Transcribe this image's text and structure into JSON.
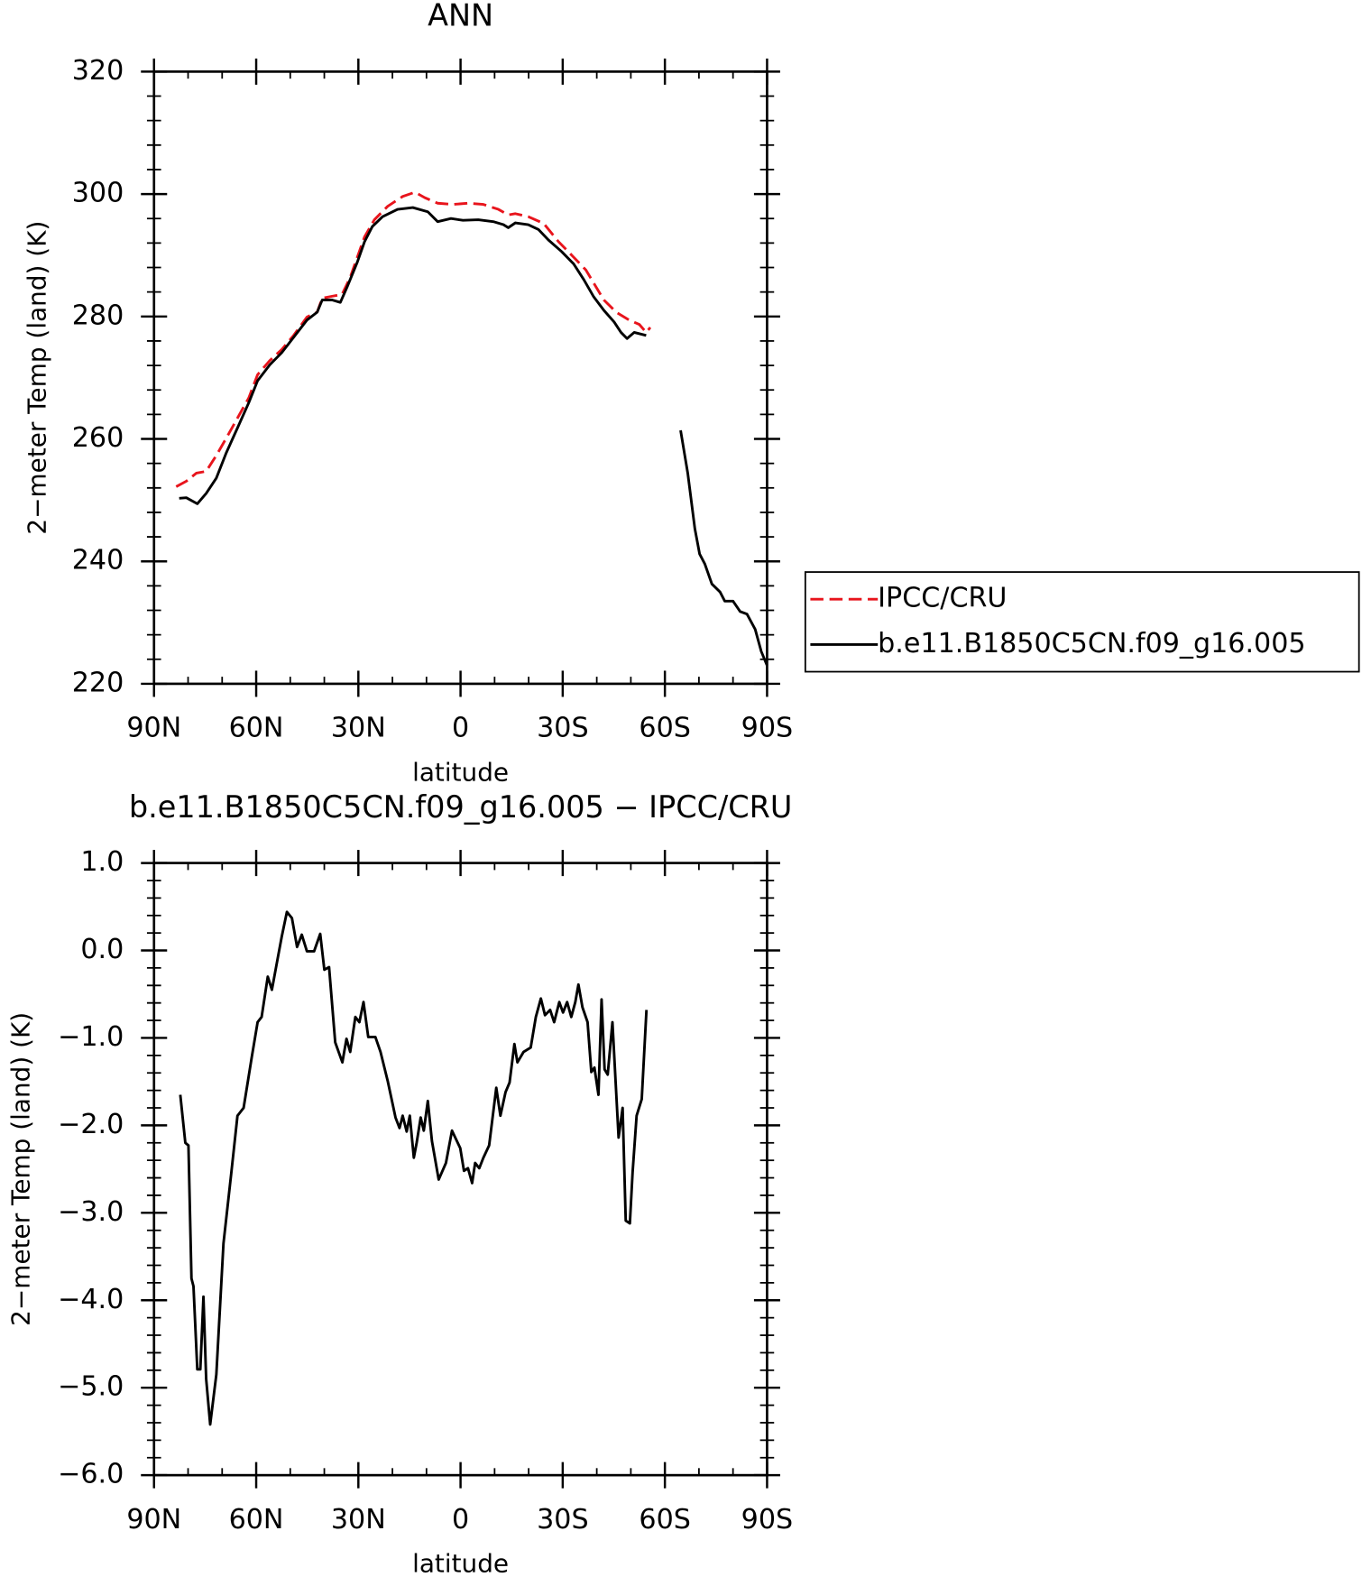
{
  "chart_data": [
    {
      "type": "line",
      "title": "ANN",
      "xlabel": "latitude",
      "ylabel": "2−meter Temp (land) (K)",
      "xlim": [
        90,
        -90
      ],
      "xticks": [
        {
          "value": 90,
          "label": "90N"
        },
        {
          "value": 60,
          "label": "60N"
        },
        {
          "value": 30,
          "label": "30N"
        },
        0,
        {
          "value": -30,
          "label": "30S"
        },
        {
          "value": -60,
          "label": "60S"
        },
        {
          "value": -90,
          "label": "90S"
        }
      ],
      "ylim": [
        220,
        320
      ],
      "yticks": [
        220,
        240,
        260,
        280,
        300,
        320
      ],
      "legend": "right",
      "series": [
        {
          "name": "IPCC/CRU",
          "color": "#e8141c",
          "dash": true,
          "x": [
            83.5,
            80.5,
            77.6,
            74.7,
            71.7,
            68.8,
            65.5,
            62.2,
            59.6,
            56.0,
            52.5,
            49.0,
            45.1,
            42.1,
            40.6,
            37.7,
            34.8,
            32.4,
            30.3,
            28.2,
            25.3,
            21.4,
            17.0,
            13.4,
            10.5,
            6.7,
            2.2,
            -2.2,
            -6.7,
            -11.1,
            -14.0,
            -16.1,
            -19.9,
            -24.4,
            -28.8,
            -33.2,
            -36.8,
            -39.8,
            -42.1,
            -45.7,
            -49.5,
            -52.5,
            -54.5,
            -55.7
          ],
          "values": [
            252.2,
            253.1,
            254.4,
            254.7,
            257.3,
            260.1,
            263.4,
            266.7,
            270.5,
            272.8,
            274.6,
            276.9,
            279.9,
            280.7,
            283.0,
            283.3,
            283.6,
            286.4,
            289.7,
            293.0,
            295.8,
            298.0,
            299.6,
            300.3,
            299.4,
            298.5,
            298.3,
            298.5,
            298.3,
            297.5,
            296.6,
            296.8,
            296.3,
            295.2,
            292.2,
            289.7,
            287.6,
            284.8,
            282.7,
            280.7,
            279.4,
            278.7,
            277.4,
            278.2
          ]
        },
        {
          "name": "b.e11.B1850C5CN.f09_g16.005",
          "color": "#000000",
          "dash": false,
          "x": [
            82.6,
            80.5,
            77.3,
            74.7,
            71.7,
            68.8,
            65.5,
            62.2,
            59.6,
            56.0,
            52.5,
            49.0,
            45.1,
            42.1,
            40.6,
            37.7,
            35.3,
            33.3,
            30.3,
            28.2,
            25.9,
            22.9,
            18.5,
            14.0,
            9.6,
            6.7,
            2.8,
            -0.7,
            -5.2,
            -9.6,
            -12.6,
            -14.0,
            -16.1,
            -19.9,
            -22.9,
            -25.8,
            -29.7,
            -33.2,
            -36.2,
            -39.1,
            -42.1,
            -45.1,
            -47.1,
            -48.9,
            -51.0,
            -54.5,
            null,
            -64.6,
            -66.7,
            -68.8,
            -70.2,
            -71.7,
            -73.8,
            -76.2,
            -77.6,
            -80.0,
            -82.1,
            -84.1,
            -86.5,
            -88.3,
            -90.0
          ],
          "values": [
            250.3,
            250.4,
            249.4,
            251.1,
            253.6,
            257.7,
            261.8,
            265.9,
            269.5,
            272.1,
            274.1,
            276.6,
            279.4,
            280.7,
            282.7,
            282.7,
            282.3,
            284.8,
            288.9,
            292.2,
            294.7,
            296.3,
            297.5,
            297.8,
            297.1,
            295.5,
            296.0,
            295.7,
            295.8,
            295.5,
            295.0,
            294.5,
            295.3,
            295.0,
            294.2,
            292.5,
            290.6,
            288.6,
            286.0,
            283.2,
            281.0,
            279.1,
            277.4,
            276.4,
            277.4,
            276.9,
            null,
            261.4,
            254.4,
            245.3,
            241.2,
            239.6,
            236.3,
            235.0,
            233.5,
            233.5,
            231.8,
            231.4,
            228.9,
            225.3,
            223.0
          ]
        }
      ]
    },
    {
      "type": "line",
      "title": "b.e11.B1850C5CN.f09_g16.005 − IPCC/CRU",
      "xlabel": "latitude",
      "ylabel": "2−meter Temp (land) (K)",
      "xlim": [
        90,
        -90
      ],
      "xticks": [
        {
          "value": 90,
          "label": "90N"
        },
        {
          "value": 60,
          "label": "60N"
        },
        {
          "value": 30,
          "label": "30N"
        },
        0,
        {
          "value": -30,
          "label": "30S"
        },
        {
          "value": -60,
          "label": "60S"
        },
        {
          "value": -90,
          "label": "90S"
        }
      ],
      "ylim": [
        -6,
        1
      ],
      "yticks": [
        {
          "value": -6,
          "label": "−6.0"
        },
        {
          "value": -5,
          "label": "−5.0"
        },
        {
          "value": -4,
          "label": "−4.0"
        },
        {
          "value": -3,
          "label": "−3.0"
        },
        {
          "value": -2,
          "label": "−2.0"
        },
        {
          "value": -1,
          "label": "−1.0"
        },
        {
          "value": 0,
          "label": "0.0"
        },
        {
          "value": 1,
          "label": "1.0"
        }
      ],
      "series": [
        {
          "color": "#000000",
          "dash": false,
          "x": [
            82.3,
            80.8,
            79.9,
            79.0,
            78.4,
            77.3,
            76.4,
            75.5,
            74.7,
            73.5,
            71.7,
            69.6,
            67.3,
            65.5,
            63.7,
            61.3,
            59.6,
            58.4,
            56.6,
            55.4,
            53.6,
            52.5,
            51.0,
            49.5,
            48.0,
            46.6,
            45.1,
            43.0,
            41.2,
            40.0,
            38.6,
            36.8,
            34.7,
            33.5,
            32.4,
            30.9,
            29.7,
            28.5,
            27.1,
            25.0,
            23.5,
            21.4,
            19.1,
            17.9,
            17.0,
            15.8,
            14.9,
            13.7,
            12.9,
            11.7,
            10.8,
            9.6,
            8.4,
            6.4,
            4.3,
            2.5,
            0.1,
            -1.0,
            -2.2,
            -3.4,
            -4.3,
            -5.5,
            -6.7,
            -8.4,
            -10.5,
            -11.7,
            -13.2,
            -14.4,
            -15.8,
            -16.7,
            -18.5,
            -20.6,
            -22.1,
            -23.6,
            -24.8,
            -26.3,
            -27.5,
            -29.0,
            -30.1,
            -31.3,
            -32.5,
            -33.7,
            -34.6,
            -35.8,
            -37.3,
            -38.4,
            -39.3,
            -40.5,
            -41.4,
            -42.3,
            -43.2,
            -44.6,
            -46.4,
            -47.6,
            -48.5,
            -49.7,
            -50.5,
            -51.7,
            -53.2,
            -54.6
          ],
          "values": [
            -1.65,
            -2.2,
            -2.23,
            -3.75,
            -3.84,
            -4.79,
            -4.79,
            -3.96,
            -4.9,
            -5.42,
            -4.85,
            -3.35,
            -2.54,
            -1.89,
            -1.8,
            -1.22,
            -0.82,
            -0.76,
            -0.3,
            -0.45,
            -0.07,
            0.16,
            0.44,
            0.37,
            0.04,
            0.18,
            -0.01,
            -0.01,
            0.19,
            -0.22,
            -0.19,
            -1.05,
            -1.28,
            -1.01,
            -1.16,
            -0.76,
            -0.82,
            -0.59,
            -0.99,
            -0.99,
            -1.16,
            -1.49,
            -1.91,
            -2.03,
            -1.89,
            -2.07,
            -1.89,
            -2.37,
            -2.2,
            -1.91,
            -2.06,
            -1.72,
            -2.18,
            -2.62,
            -2.43,
            -2.06,
            -2.26,
            -2.52,
            -2.49,
            -2.66,
            -2.43,
            -2.49,
            -2.37,
            -2.23,
            -1.57,
            -1.89,
            -1.62,
            -1.51,
            -1.07,
            -1.28,
            -1.16,
            -1.11,
            -0.76,
            -0.55,
            -0.74,
            -0.68,
            -0.82,
            -0.59,
            -0.71,
            -0.59,
            -0.76,
            -0.59,
            -0.39,
            -0.65,
            -0.82,
            -1.39,
            -1.34,
            -1.65,
            -0.56,
            -1.36,
            -1.42,
            -0.82,
            -2.14,
            -1.8,
            -3.09,
            -3.12,
            -2.54,
            -1.89,
            -1.7,
            -0.68
          ]
        }
      ]
    }
  ]
}
